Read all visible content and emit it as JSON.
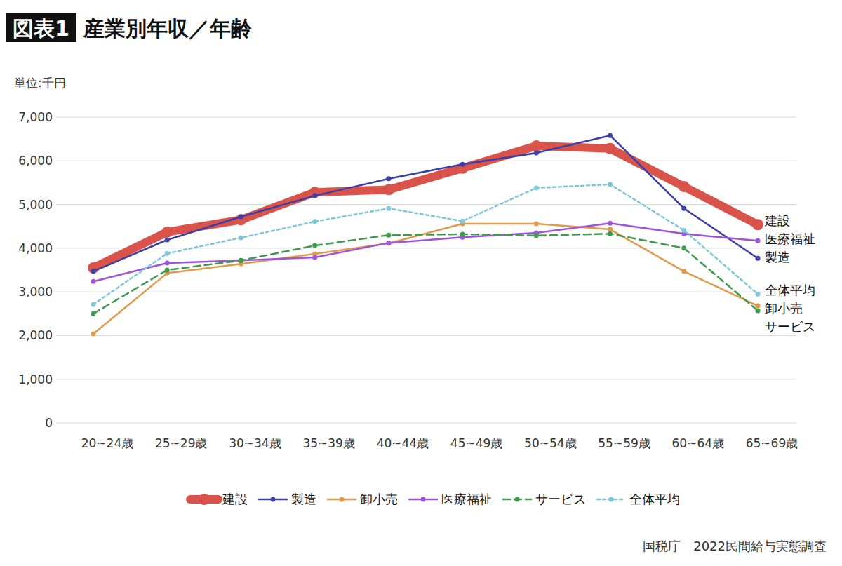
{
  "chart_data": {
    "type": "line",
    "label": "図表1",
    "title": "産業別年収／年齢",
    "y_label": "単位:千円",
    "source": "国税庁　2022民間給与実態調査",
    "categories": [
      "20~24歳",
      "25~29歳",
      "30~34歳",
      "35~39歳",
      "40~44歳",
      "45~49歳",
      "50~54歳",
      "55~59歳",
      "60~64歳",
      "65~69歳"
    ],
    "series": [
      {
        "name": "建設",
        "color": "#d9534a",
        "line_style": "solid",
        "marker": "circle",
        "values": [
          3550,
          4370,
          4650,
          5280,
          5340,
          5830,
          6340,
          6280,
          5410,
          4540
        ]
      },
      {
        "name": "製造",
        "color": "#3b3fa6",
        "line_style": "solid",
        "marker": "circle",
        "values": [
          3470,
          4190,
          4720,
          5200,
          5590,
          5920,
          6180,
          6580,
          4910,
          3770
        ]
      },
      {
        "name": "卸小売",
        "color": "#e09a4c",
        "line_style": "solid",
        "marker": "circle",
        "values": [
          2040,
          3430,
          3640,
          3870,
          4110,
          4560,
          4560,
          4430,
          3470,
          2680
        ]
      },
      {
        "name": "医療福祉",
        "color": "#a052dc",
        "line_style": "solid",
        "marker": "circle",
        "values": [
          3240,
          3660,
          3720,
          3790,
          4120,
          4250,
          4350,
          4570,
          4330,
          4170
        ]
      },
      {
        "name": "サービス",
        "color": "#3f9a4e",
        "line_style": "dashed",
        "marker": "circle",
        "values": [
          2500,
          3500,
          3720,
          4060,
          4300,
          4320,
          4290,
          4330,
          4000,
          2570
        ]
      },
      {
        "name": "全体平均",
        "color": "#7fc6d8",
        "line_style": "dotted",
        "marker": "circle",
        "values": [
          2710,
          3880,
          4240,
          4610,
          4910,
          4620,
          5380,
          5460,
          4410,
          2950
        ]
      }
    ],
    "ylim": [
      0,
      7000
    ],
    "yticks": [
      0,
      {
        "value": 1000,
        "label": "1,000"
      },
      {
        "value": 2000,
        "label": "2,000"
      },
      {
        "value": 3000,
        "label": "3,000"
      },
      {
        "value": 4000,
        "label": "4,000"
      },
      {
        "value": 5000,
        "label": "5,000"
      },
      {
        "value": 6000,
        "label": "6,000"
      },
      {
        "value": 7000,
        "label": "7,000"
      }
    ],
    "grid": true,
    "legend": "bottom"
  }
}
